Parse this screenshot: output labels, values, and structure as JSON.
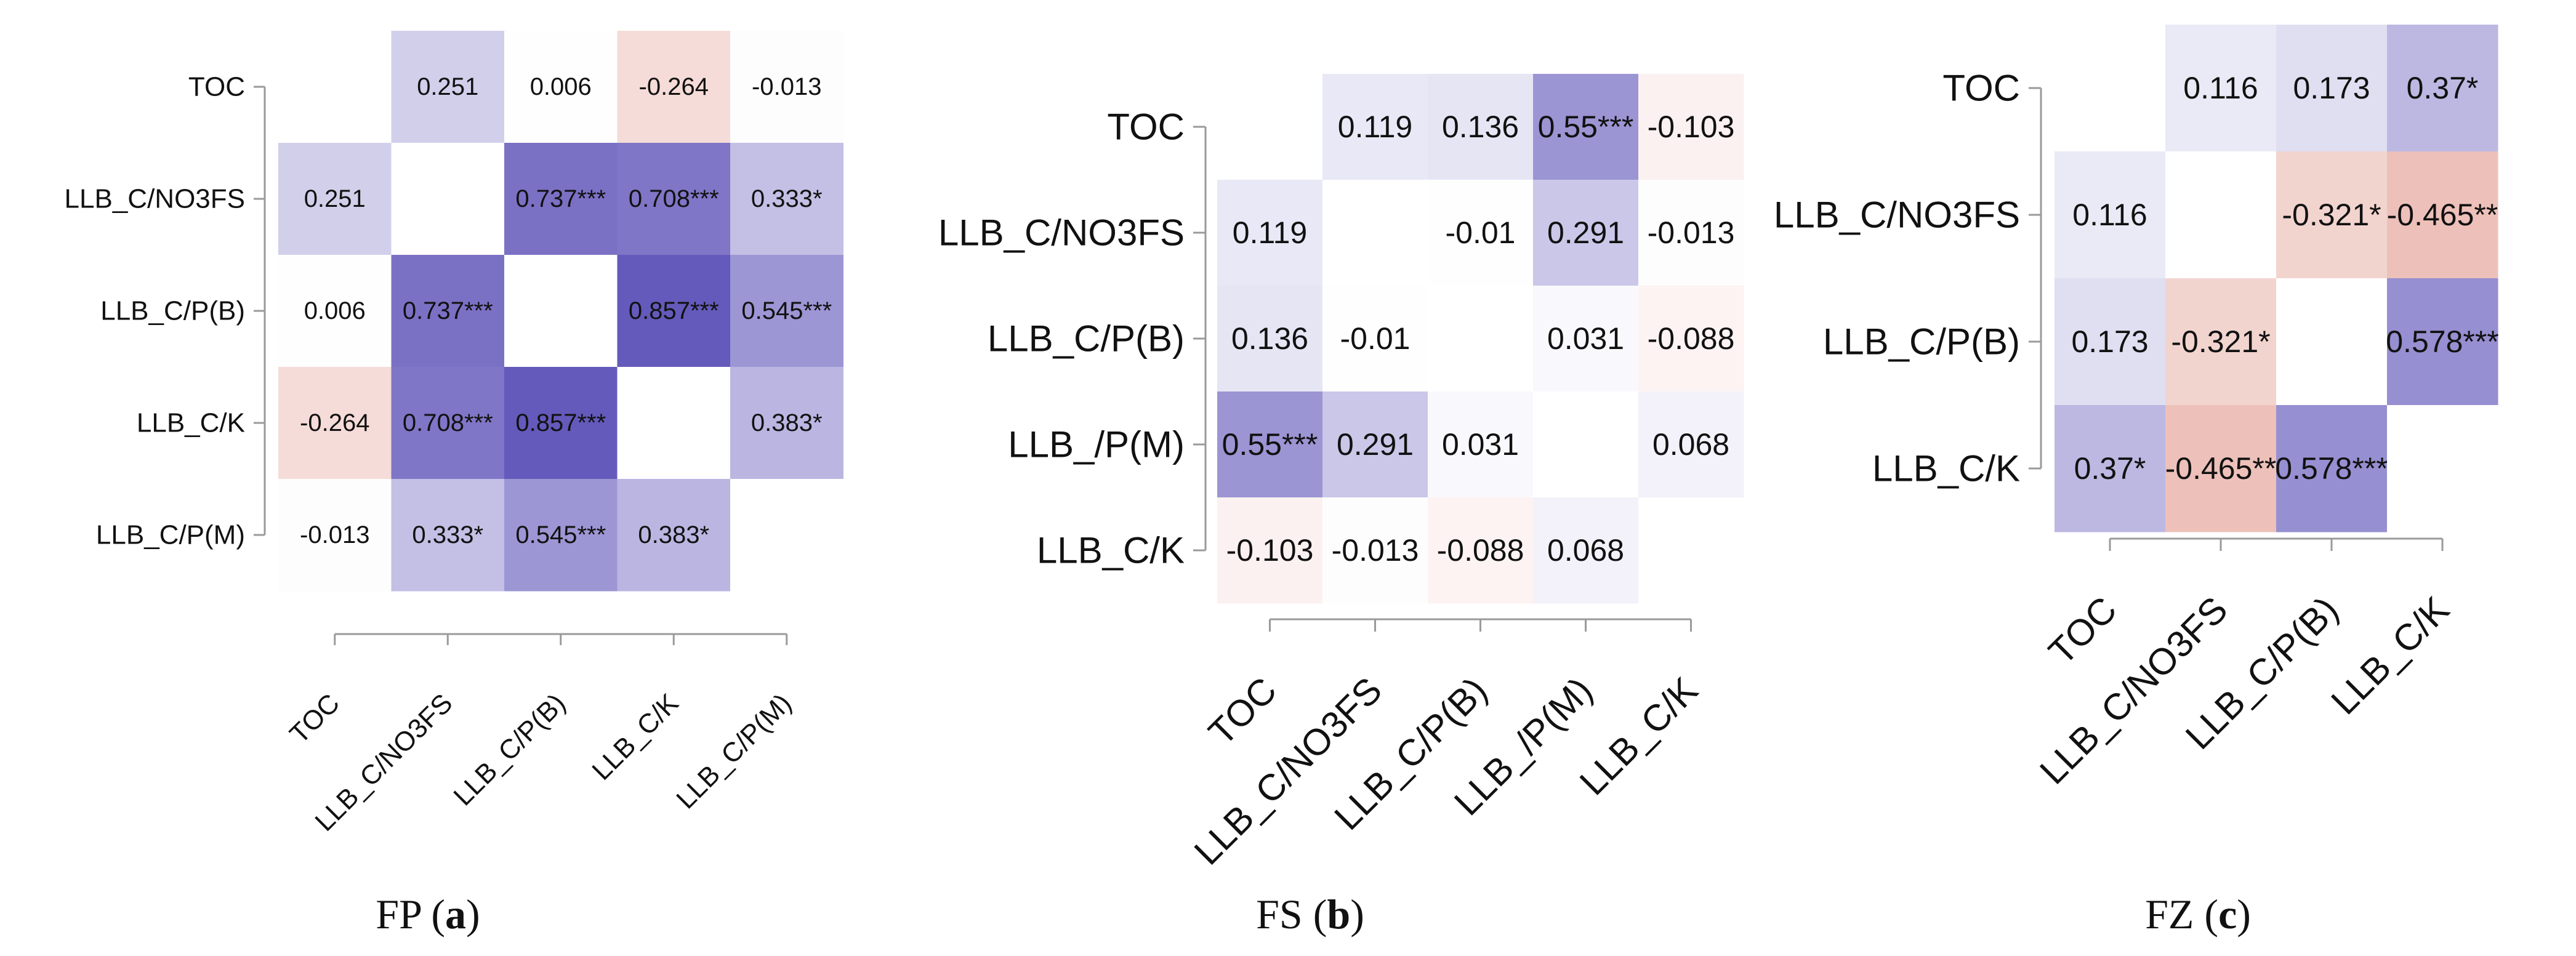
{
  "colors": {
    "positive": "#4a3eb0",
    "negative": "#d87a6a",
    "neutral": "#ffffff",
    "text": "#111111",
    "axis": "#9a9a9a"
  },
  "chart_data": [
    {
      "type": "heatmap",
      "title": "FP (a)",
      "caption": {
        "prefix": "FP (",
        "letter": "a",
        "suffix": ")"
      },
      "row_labels": [
        "TOC",
        "LLB_C/NO3FS",
        "LLB_C/P(B)",
        "LLB_C/K",
        "LLB_C/P(M)"
      ],
      "col_labels": [
        "TOC",
        "LLB_C/NO3FS",
        "LLB_C/P(B)",
        "LLB_C/K",
        "LLB_C/P(M)"
      ],
      "values": [
        [
          null,
          0.251,
          0.006,
          -0.264,
          -0.013
        ],
        [
          0.251,
          null,
          0.737,
          0.708,
          0.333
        ],
        [
          0.006,
          0.737,
          null,
          0.857,
          0.545
        ],
        [
          -0.264,
          0.708,
          0.857,
          null,
          0.383
        ],
        [
          -0.013,
          0.333,
          0.545,
          0.383,
          null
        ]
      ],
      "labels": [
        [
          "",
          "0.251",
          "0.006",
          "-0.264",
          "-0.013"
        ],
        [
          "0.251",
          "",
          "0.737***",
          "0.708***",
          "0.333*"
        ],
        [
          "0.006",
          "0.737***",
          "",
          "0.857***",
          "0.545***"
        ],
        [
          "-0.264",
          "0.708***",
          "0.857***",
          "",
          "0.383*"
        ],
        [
          "-0.013",
          "0.333*",
          "0.545***",
          "0.383*",
          ""
        ]
      ],
      "color_range": [
        -1,
        1
      ]
    },
    {
      "type": "heatmap",
      "title": "FS (b)",
      "caption": {
        "prefix": "FS (",
        "letter": "b",
        "suffix": ")"
      },
      "row_labels": [
        "TOC",
        "LLB_C/NO3FS",
        "LLB_C/P(B)",
        "LLB_/P(M)",
        "LLB_C/K"
      ],
      "col_labels": [
        "TOC",
        "LLB_C/NO3FS",
        "LLB_C/P(B)",
        "LLB_/P(M)",
        "LLB_C/K"
      ],
      "values": [
        [
          null,
          0.119,
          0.136,
          0.55,
          -0.103
        ],
        [
          0.119,
          null,
          -0.01,
          0.291,
          -0.013
        ],
        [
          0.136,
          -0.01,
          null,
          0.031,
          -0.088
        ],
        [
          0.55,
          0.291,
          0.031,
          null,
          0.068
        ],
        [
          -0.103,
          -0.013,
          -0.088,
          0.068,
          null
        ]
      ],
      "labels": [
        [
          "",
          "0.119",
          "0.136",
          "0.55***",
          "-0.103"
        ],
        [
          "0.119",
          "",
          "-0.01",
          "0.291",
          "-0.013"
        ],
        [
          "0.136",
          "-0.01",
          "",
          "0.031",
          "-0.088"
        ],
        [
          "0.55***",
          "0.291",
          "0.031",
          "",
          "0.068"
        ],
        [
          "-0.103",
          "-0.013",
          "-0.088",
          "0.068",
          ""
        ]
      ],
      "color_range": [
        -1,
        1
      ]
    },
    {
      "type": "heatmap",
      "title": "FZ (c)",
      "caption": {
        "prefix": "FZ (",
        "letter": "c",
        "suffix": ")"
      },
      "row_labels": [
        "TOC",
        "LLB_C/NO3FS",
        "LLB_C/P(B)",
        "LLB_C/K"
      ],
      "col_labels": [
        "TOC",
        "LLB_C/NO3FS",
        "LLB_C/P(B)",
        "LLB_C/K"
      ],
      "values": [
        [
          null,
          0.116,
          0.173,
          0.37
        ],
        [
          0.116,
          null,
          -0.321,
          -0.465
        ],
        [
          0.173,
          -0.321,
          null,
          0.578
        ],
        [
          0.37,
          -0.465,
          0.578,
          null
        ]
      ],
      "labels": [
        [
          "",
          "0.116",
          "0.173",
          "0.37*"
        ],
        [
          "0.116",
          "",
          "-0.321*",
          "-0.465**"
        ],
        [
          "0.173",
          "-0.321*",
          "",
          "0.578***"
        ],
        [
          "0.37*",
          "-0.465**",
          "0.578***",
          ""
        ]
      ],
      "color_range": [
        -1,
        1
      ]
    }
  ]
}
